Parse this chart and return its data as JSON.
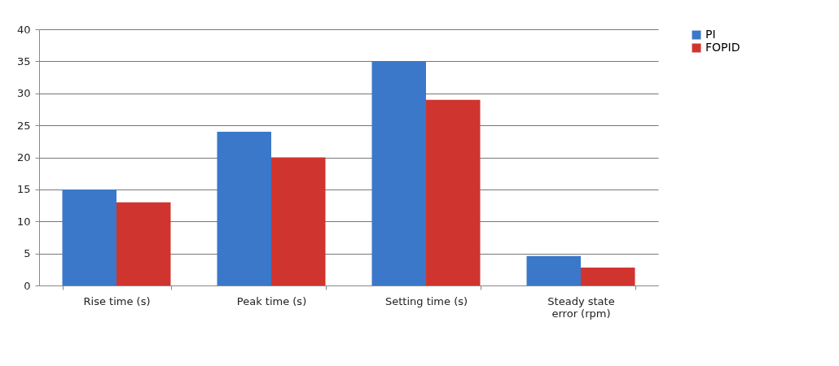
{
  "chart_data": {
    "type": "bar",
    "categories": [
      "Rise time  (s)",
      "Peak time  (s)",
      "Setting time  (s)",
      "Steady state error (rpm)"
    ],
    "series": [
      {
        "name": "PI",
        "color": "#3b78c9",
        "values": [
          15,
          24,
          35,
          4.6
        ]
      },
      {
        "name": "FOPID",
        "color": "#d0342f",
        "values": [
          13,
          20,
          29,
          2.8
        ]
      }
    ],
    "ylim": [
      0,
      40
    ],
    "yticks": [
      0,
      5,
      10,
      15,
      20,
      25,
      30,
      35,
      40
    ],
    "grid": "y",
    "legend": "right"
  }
}
